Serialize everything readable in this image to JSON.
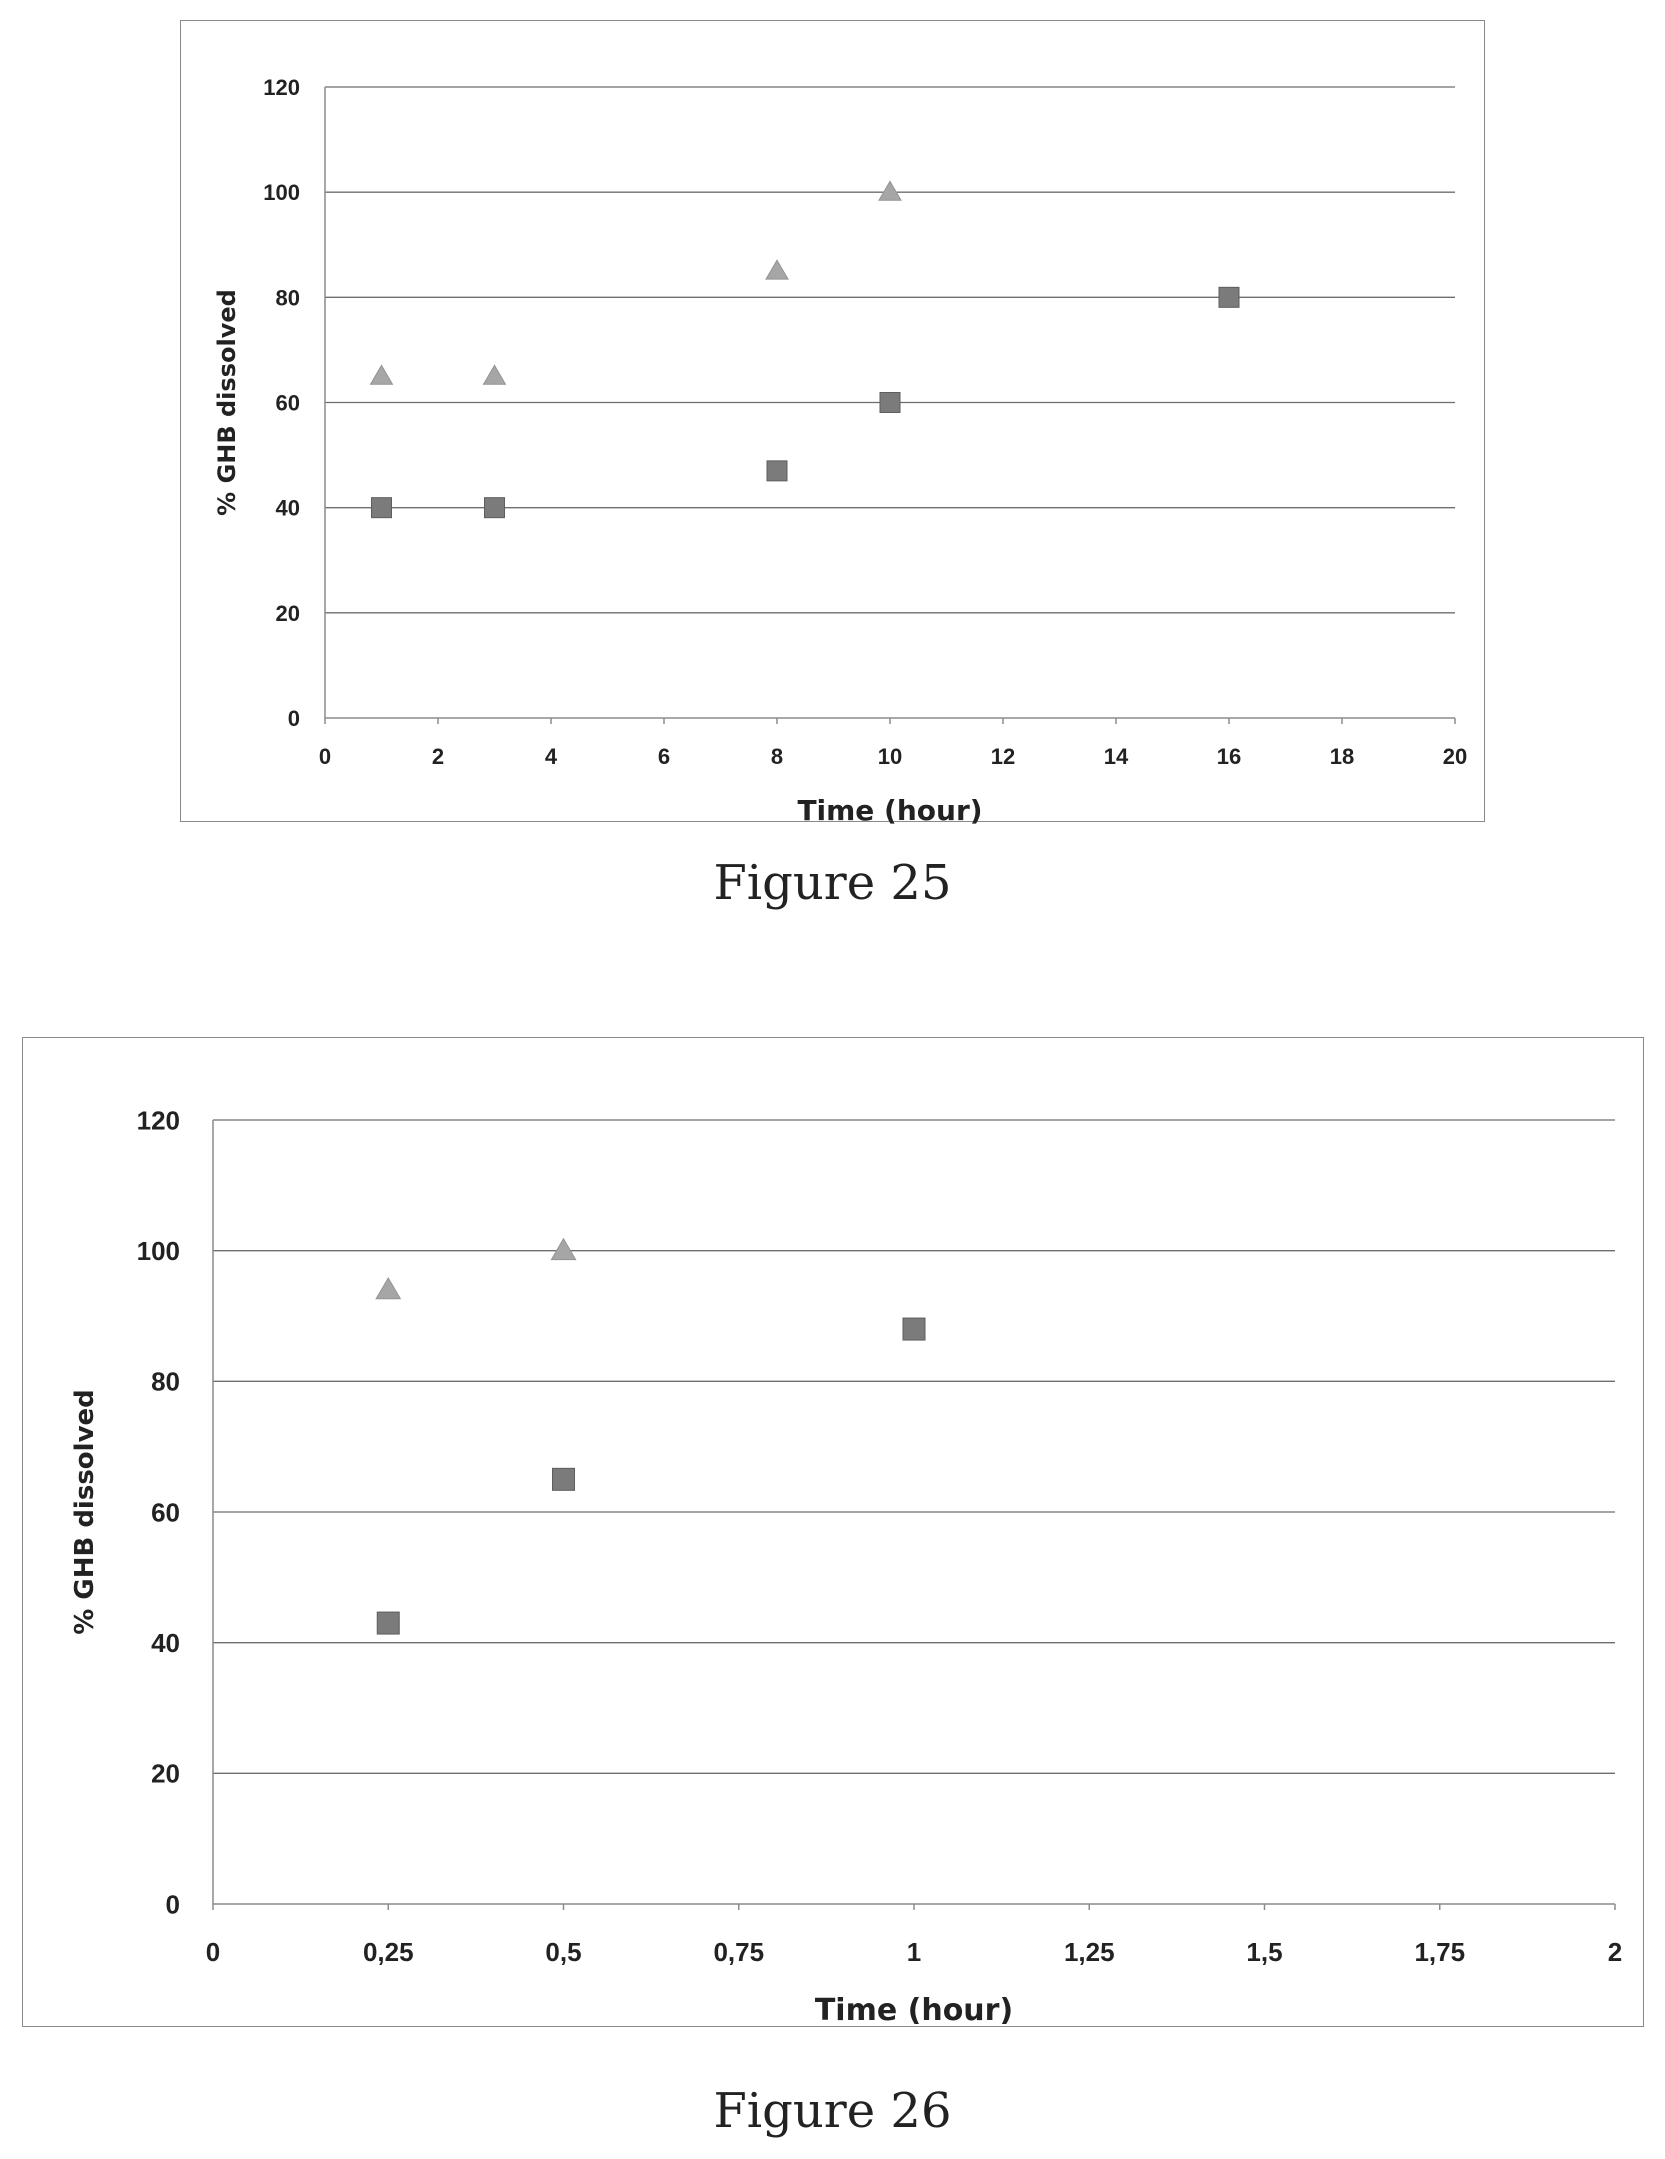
{
  "figures": [
    {
      "caption": "Figure 25"
    },
    {
      "caption": "Figure 26"
    }
  ],
  "colors": {
    "triangle": "#a6a6a6",
    "square": "#7b7b7b",
    "grid": "#6e6e6e",
    "axis": "#8c8c8c"
  },
  "chart_data": [
    {
      "type": "scatter",
      "title": "",
      "xlabel": "Time (hour)",
      "ylabel": "% GHB dissolved",
      "xlim": [
        0,
        20
      ],
      "ylim": [
        0,
        120
      ],
      "x_ticks": [
        "0",
        "2",
        "4",
        "6",
        "8",
        "10",
        "12",
        "14",
        "16",
        "18",
        "20"
      ],
      "y_ticks": [
        "0",
        "20",
        "40",
        "60",
        "80",
        "100",
        "120"
      ],
      "grid": "horizontal",
      "legend": "none",
      "series": [
        {
          "marker": "triangle",
          "points": [
            [
              1,
              65
            ],
            [
              3,
              65
            ],
            [
              8,
              85
            ],
            [
              10,
              100
            ]
          ]
        },
        {
          "marker": "square",
          "points": [
            [
              1,
              40
            ],
            [
              3,
              40
            ],
            [
              8,
              47
            ],
            [
              10,
              60
            ],
            [
              16,
              80
            ]
          ]
        }
      ]
    },
    {
      "type": "scatter",
      "title": "",
      "xlabel": "Time (hour)",
      "ylabel": "% GHB dissolved",
      "xlim": [
        0,
        2
      ],
      "ylim": [
        0,
        120
      ],
      "x_ticks": [
        "0",
        "0,25",
        "0,5",
        "0,75",
        "1",
        "1,25",
        "1,5",
        "1,75",
        "2"
      ],
      "y_ticks": [
        "0",
        "20",
        "40",
        "60",
        "80",
        "100",
        "120"
      ],
      "grid": "horizontal",
      "legend": "none",
      "series": [
        {
          "marker": "triangle",
          "points": [
            [
              0.25,
              94
            ],
            [
              0.5,
              100
            ]
          ]
        },
        {
          "marker": "square",
          "points": [
            [
              0.25,
              43
            ],
            [
              0.5,
              65
            ],
            [
              1,
              88
            ]
          ]
        }
      ]
    }
  ]
}
